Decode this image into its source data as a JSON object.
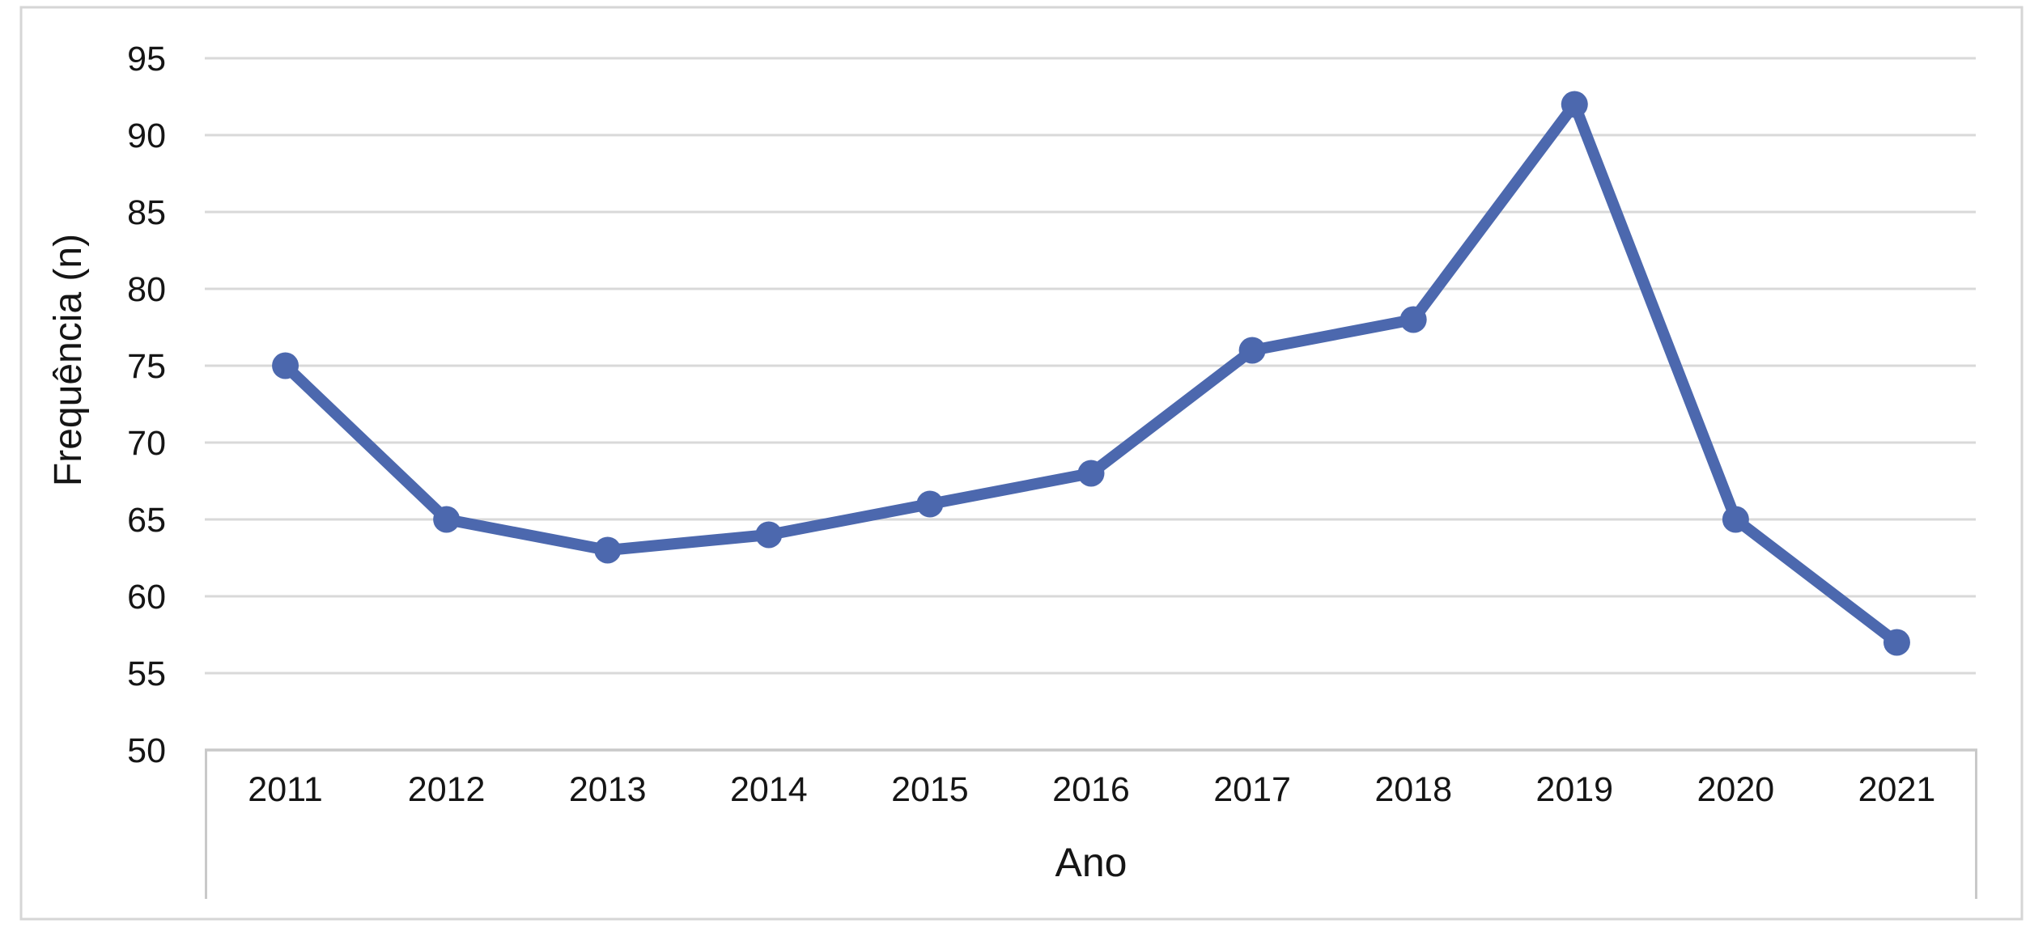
{
  "figure": {
    "background": "#ffffff",
    "border_color": "#d6d6d6"
  },
  "chart_data": {
    "type": "line",
    "categories": [
      "2011",
      "2012",
      "2013",
      "2014",
      "2015",
      "2016",
      "2017",
      "2018",
      "2019",
      "2020",
      "2021"
    ],
    "values": [
      75,
      65,
      63,
      64,
      66,
      68,
      76,
      78,
      92,
      65,
      57
    ],
    "xlabel": "Ano",
    "ylabel": "Frequência (n)",
    "ylim": [
      50,
      95
    ],
    "ytick_step": 5,
    "yticks": [
      50,
      55,
      60,
      65,
      70,
      75,
      80,
      85,
      90,
      95
    ],
    "grid": true,
    "legend": "none",
    "line_color": "#4c68ae",
    "marker": "circle",
    "grid_color": "#d9d9d9",
    "axis_line_color": "#c9c9c9",
    "text_color": "#151515"
  }
}
